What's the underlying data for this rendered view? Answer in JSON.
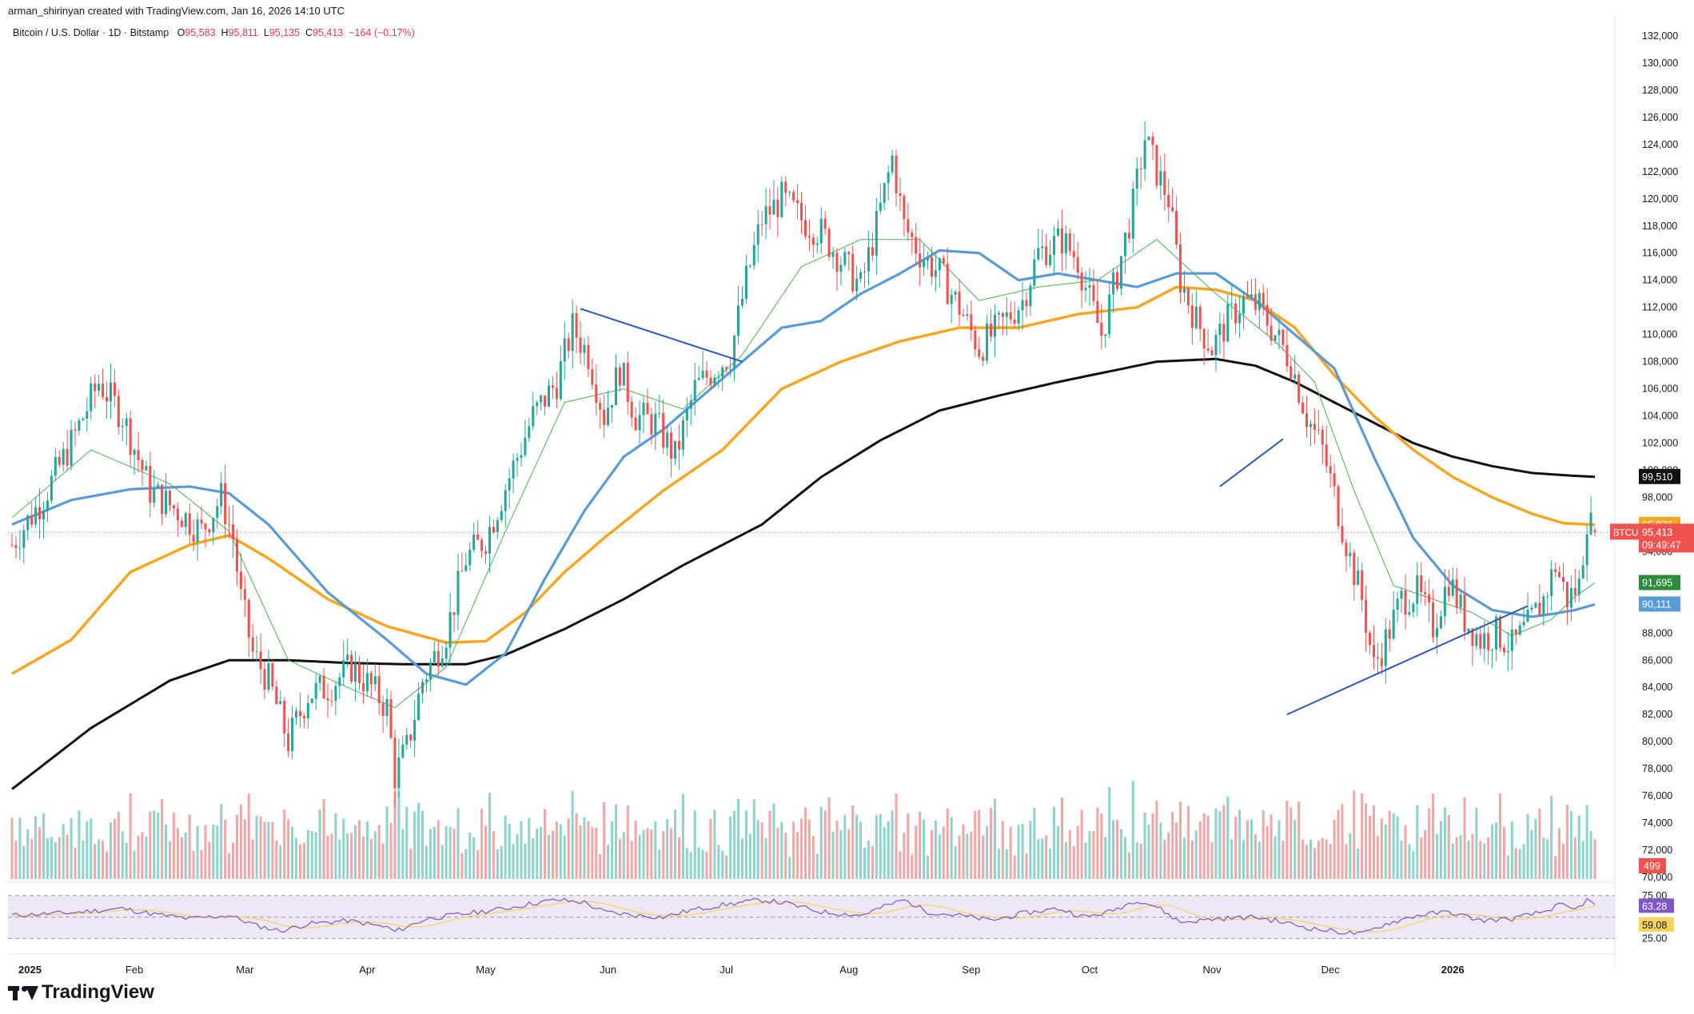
{
  "header": {
    "created_by": "arman_shirinyan created with TradingView.com, Jan 16, 2026 14:10 UTC",
    "symbol": "Bitcoin / U.S. Dollar · 1D · Bitstamp",
    "o_label": "O",
    "o_value": "95,583",
    "h_label": "H",
    "h_value": "95,811",
    "l_label": "L",
    "l_value": "95,135",
    "c_label": "C",
    "c_value": "95,413",
    "change": "−164 (−0.17%)"
  },
  "brand": {
    "name": "TradingView"
  },
  "colors": {
    "up": "#26a69a",
    "down": "#ef5350",
    "vol_up": "#8fd3cc",
    "vol_down": "#f0a8a6",
    "ma_fast": "#4caf50",
    "ma_blue": "#5b9bd5",
    "ma_orange": "#f5a623",
    "ma_black": "#111111",
    "trendline": "#2f5bb7",
    "rsi": "#7e57c2",
    "rsi_ma": "#f6d35b",
    "rsi_band": "#ede7f6"
  },
  "chart_data": {
    "type": "candlestick",
    "symbol": "BTCUSD",
    "x_ticks": [
      "2025",
      "Feb",
      "Mar",
      "Apr",
      "May",
      "Jun",
      "Jul",
      "Aug",
      "Sep",
      "Oct",
      "Nov",
      "Dec",
      "2026"
    ],
    "ylim": [
      70000,
      133000
    ],
    "y_ticks": [
      "132,000",
      "130,000",
      "128,000",
      "126,000",
      "124,000",
      "122,000",
      "120,000",
      "118,000",
      "116,000",
      "114,000",
      "112,000",
      "110,000",
      "108,000",
      "106,000",
      "104,000",
      "102,000",
      "100,000",
      "98,000",
      "94,000",
      "92,000",
      "88,000",
      "86,000",
      "84,000",
      "82,000",
      "80,000",
      "78,000",
      "76,000",
      "74,000",
      "72,000",
      "70,000"
    ],
    "close_path": [
      [
        0,
        94500
      ],
      [
        8,
        98000
      ],
      [
        15,
        102000
      ],
      [
        22,
        106500
      ],
      [
        28,
        104000
      ],
      [
        35,
        98500
      ],
      [
        42,
        97000
      ],
      [
        48,
        95500
      ],
      [
        53,
        98000
      ],
      [
        56,
        95000
      ],
      [
        58,
        90500
      ],
      [
        61,
        86500
      ],
      [
        65,
        84500
      ],
      [
        70,
        80000
      ],
      [
        75,
        83500
      ],
      [
        80,
        84000
      ],
      [
        86,
        85500
      ],
      [
        91,
        84000
      ],
      [
        95,
        82500
      ],
      [
        97,
        77500
      ],
      [
        100,
        79500
      ],
      [
        104,
        84500
      ],
      [
        110,
        88000
      ],
      [
        115,
        93500
      ],
      [
        120,
        95000
      ],
      [
        126,
        99500
      ],
      [
        132,
        104000
      ],
      [
        138,
        106500
      ],
      [
        142,
        110500
      ],
      [
        146,
        108500
      ],
      [
        150,
        104000
      ],
      [
        154,
        107500
      ],
      [
        158,
        104000
      ],
      [
        163,
        103500
      ],
      [
        168,
        101000
      ],
      [
        173,
        106000
      ],
      [
        178,
        107500
      ],
      [
        182,
        108500
      ],
      [
        186,
        114000
      ],
      [
        190,
        118500
      ],
      [
        195,
        120000
      ],
      [
        200,
        118500
      ],
      [
        205,
        117500
      ],
      [
        210,
        115500
      ],
      [
        215,
        113500
      ],
      [
        219,
        118000
      ],
      [
        223,
        123000
      ],
      [
        226,
        118000
      ],
      [
        230,
        116000
      ],
      [
        235,
        114500
      ],
      [
        240,
        112000
      ],
      [
        245,
        109000
      ],
      [
        250,
        110500
      ],
      [
        256,
        112500
      ],
      [
        260,
        116000
      ],
      [
        266,
        117000
      ],
      [
        270,
        115500
      ],
      [
        273,
        112500
      ],
      [
        276,
        110000
      ],
      [
        280,
        114500
      ],
      [
        284,
        119500
      ],
      [
        287,
        124500
      ],
      [
        290,
        122000
      ],
      [
        293,
        120000
      ],
      [
        296,
        114000
      ],
      [
        300,
        111000
      ],
      [
        304,
        109000
      ],
      [
        308,
        111000
      ],
      [
        312,
        112500
      ],
      [
        316,
        112000
      ],
      [
        320,
        110000
      ],
      [
        324,
        108000
      ],
      [
        328,
        104000
      ],
      [
        332,
        101500
      ],
      [
        336,
        97000
      ],
      [
        339,
        93500
      ],
      [
        342,
        90500
      ],
      [
        345,
        85500
      ],
      [
        348,
        87500
      ],
      [
        352,
        90500
      ],
      [
        356,
        91000
      ],
      [
        360,
        88500
      ],
      [
        364,
        92000
      ],
      [
        368,
        89000
      ],
      [
        372,
        87500
      ],
      [
        376,
        88000
      ],
      [
        380,
        87000
      ],
      [
        384,
        88500
      ],
      [
        388,
        90500
      ],
      [
        391,
        93000
      ],
      [
        394,
        90500
      ],
      [
        397,
        91500
      ],
      [
        399,
        96500
      ],
      [
        401,
        95413
      ]
    ],
    "ma_fast_path": [
      [
        0,
        96500
      ],
      [
        20,
        101500
      ],
      [
        40,
        99000
      ],
      [
        55,
        95500
      ],
      [
        70,
        86000
      ],
      [
        85,
        84000
      ],
      [
        97,
        82500
      ],
      [
        110,
        85500
      ],
      [
        125,
        95500
      ],
      [
        140,
        105000
      ],
      [
        155,
        106000
      ],
      [
        170,
        104500
      ],
      [
        185,
        108500
      ],
      [
        200,
        115000
      ],
      [
        215,
        117000
      ],
      [
        230,
        117000
      ],
      [
        245,
        112500
      ],
      [
        260,
        113500
      ],
      [
        275,
        114000
      ],
      [
        290,
        117000
      ],
      [
        305,
        113000
      ],
      [
        320,
        109500
      ],
      [
        330,
        106500
      ],
      [
        340,
        98500
      ],
      [
        350,
        91500
      ],
      [
        360,
        90500
      ],
      [
        370,
        89500
      ],
      [
        380,
        87800
      ],
      [
        390,
        89000
      ],
      [
        396,
        90700
      ],
      [
        401,
        91695
      ]
    ],
    "ma_blue_path": [
      [
        0,
        96000
      ],
      [
        15,
        97800
      ],
      [
        30,
        98600
      ],
      [
        45,
        98800
      ],
      [
        55,
        98300
      ],
      [
        65,
        96000
      ],
      [
        80,
        91000
      ],
      [
        95,
        87500
      ],
      [
        105,
        85000
      ],
      [
        115,
        84200
      ],
      [
        125,
        86500
      ],
      [
        135,
        92000
      ],
      [
        145,
        97000
      ],
      [
        155,
        101000
      ],
      [
        165,
        103000
      ],
      [
        175,
        105500
      ],
      [
        185,
        108000
      ],
      [
        195,
        110500
      ],
      [
        205,
        111000
      ],
      [
        215,
        113000
      ],
      [
        225,
        114500
      ],
      [
        235,
        116200
      ],
      [
        245,
        116000
      ],
      [
        255,
        114000
      ],
      [
        265,
        114500
      ],
      [
        275,
        114000
      ],
      [
        285,
        113500
      ],
      [
        295,
        114500
      ],
      [
        305,
        114500
      ],
      [
        315,
        112500
      ],
      [
        325,
        110000
      ],
      [
        335,
        107500
      ],
      [
        345,
        101000
      ],
      [
        355,
        95000
      ],
      [
        365,
        91500
      ],
      [
        375,
        89700
      ],
      [
        385,
        89200
      ],
      [
        390,
        89400
      ],
      [
        396,
        89700
      ],
      [
        401,
        90111
      ]
    ],
    "ma_orange_path": [
      [
        0,
        85000
      ],
      [
        15,
        87500
      ],
      [
        30,
        92500
      ],
      [
        45,
        94500
      ],
      [
        55,
        95200
      ],
      [
        65,
        93500
      ],
      [
        80,
        90500
      ],
      [
        95,
        88500
      ],
      [
        110,
        87300
      ],
      [
        120,
        87400
      ],
      [
        130,
        89500
      ],
      [
        140,
        92500
      ],
      [
        150,
        95000
      ],
      [
        165,
        98500
      ],
      [
        180,
        101500
      ],
      [
        195,
        106000
      ],
      [
        210,
        108000
      ],
      [
        225,
        109500
      ],
      [
        240,
        110500
      ],
      [
        255,
        110500
      ],
      [
        270,
        111500
      ],
      [
        285,
        112000
      ],
      [
        295,
        113500
      ],
      [
        305,
        113300
      ],
      [
        315,
        112500
      ],
      [
        325,
        110500
      ],
      [
        335,
        107000
      ],
      [
        345,
        104000
      ],
      [
        355,
        101500
      ],
      [
        365,
        99500
      ],
      [
        375,
        98000
      ],
      [
        385,
        96800
      ],
      [
        393,
        96100
      ],
      [
        401,
        95976
      ]
    ],
    "ma_black_path": [
      [
        0,
        76500
      ],
      [
        20,
        81000
      ],
      [
        40,
        84500
      ],
      [
        55,
        86000
      ],
      [
        70,
        86000
      ],
      [
        85,
        85800
      ],
      [
        100,
        85700
      ],
      [
        115,
        85700
      ],
      [
        125,
        86400
      ],
      [
        140,
        88300
      ],
      [
        155,
        90500
      ],
      [
        170,
        93000
      ],
      [
        190,
        96000
      ],
      [
        205,
        99500
      ],
      [
        220,
        102200
      ],
      [
        235,
        104400
      ],
      [
        250,
        105500
      ],
      [
        265,
        106500
      ],
      [
        275,
        107100
      ],
      [
        290,
        108000
      ],
      [
        305,
        108200
      ],
      [
        315,
        107700
      ],
      [
        325,
        106500
      ],
      [
        335,
        105000
      ],
      [
        345,
        103500
      ],
      [
        355,
        102000
      ],
      [
        365,
        101000
      ],
      [
        375,
        100300
      ],
      [
        385,
        99800
      ],
      [
        395,
        99600
      ],
      [
        401,
        99510
      ]
    ],
    "trendlines": [
      {
        "points": [
          [
            144,
            111900
          ],
          [
            185,
            108000
          ]
        ]
      },
      {
        "points": [
          [
            306,
            98800
          ],
          [
            322,
            102300
          ]
        ]
      },
      {
        "points": [
          [
            323,
            82000
          ],
          [
            384,
            90000
          ]
        ]
      }
    ],
    "current_price": "95,413",
    "countdown": "09:49:47",
    "price_labels": [
      {
        "label": "99,510",
        "value": 99510,
        "color": "#111111"
      },
      {
        "label": "95,976",
        "value": 95976,
        "color": "#f5a623"
      },
      {
        "label": "BTCUSD",
        "value": 95413,
        "color": "#ef5350"
      },
      {
        "label": "91,695",
        "value": 91695,
        "color": "#2e8b3a"
      },
      {
        "label": "90,111",
        "value": 90111,
        "color": "#5b9bd5"
      }
    ],
    "volume": {
      "last_label": "499"
    },
    "rsi": {
      "upper": "75.00",
      "lower": "25.00",
      "value": "63.28",
      "ma_value": "59.08",
      "path": [
        [
          0,
          52
        ],
        [
          15,
          55
        ],
        [
          28,
          60
        ],
        [
          35,
          54
        ],
        [
          45,
          48
        ],
        [
          55,
          52
        ],
        [
          62,
          40
        ],
        [
          68,
          34
        ],
        [
          75,
          42
        ],
        [
          85,
          46
        ],
        [
          95,
          38
        ],
        [
          97,
          33
        ],
        [
          105,
          48
        ],
        [
          115,
          54
        ],
        [
          125,
          60
        ],
        [
          132,
          66
        ],
        [
          138,
          70
        ],
        [
          145,
          67
        ],
        [
          150,
          56
        ],
        [
          158,
          52
        ],
        [
          165,
          50
        ],
        [
          172,
          58
        ],
        [
          180,
          64
        ],
        [
          190,
          70
        ],
        [
          196,
          66
        ],
        [
          205,
          56
        ],
        [
          215,
          52
        ],
        [
          222,
          64
        ],
        [
          226,
          70
        ],
        [
          232,
          56
        ],
        [
          240,
          52
        ],
        [
          248,
          46
        ],
        [
          256,
          54
        ],
        [
          265,
          60
        ],
        [
          272,
          50
        ],
        [
          278,
          56
        ],
        [
          285,
          70
        ],
        [
          290,
          62
        ],
        [
          296,
          44
        ],
        [
          305,
          48
        ],
        [
          315,
          50
        ],
        [
          322,
          44
        ],
        [
          330,
          36
        ],
        [
          338,
          32
        ],
        [
          342,
          30
        ],
        [
          348,
          42
        ],
        [
          356,
          52
        ],
        [
          364,
          56
        ],
        [
          372,
          46
        ],
        [
          380,
          48
        ],
        [
          388,
          56
        ],
        [
          392,
          64
        ],
        [
          396,
          58
        ],
        [
          399,
          70
        ],
        [
          401,
          63
        ]
      ]
    }
  }
}
